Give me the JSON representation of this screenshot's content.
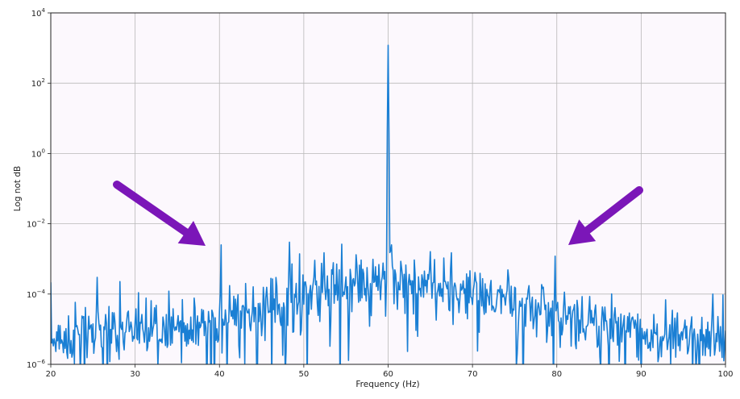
{
  "chart_data": {
    "type": "line",
    "title": "",
    "xlabel": "Frequency (Hz)",
    "ylabel": "Log not dB",
    "xlim": [
      20,
      100
    ],
    "y_scale": "log",
    "ylim": [
      1e-06,
      10000
    ],
    "x_ticks": [
      "20",
      "30",
      "40",
      "50",
      "60",
      "70",
      "80",
      "90",
      "100"
    ],
    "y_ticks": [
      {
        "base": "10",
        "exp": "−6"
      },
      {
        "base": "10",
        "exp": "−4"
      },
      {
        "base": "10",
        "exp": "−2"
      },
      {
        "base": "10",
        "exp": "0"
      },
      {
        "base": "10",
        "exp": "2"
      },
      {
        "base": "10",
        "exp": "4"
      }
    ],
    "grid": true,
    "legend": "none",
    "line_color": "#1a7fd4",
    "annotation_color": "#7b16b8",
    "annotations": [
      {
        "kind": "arrow",
        "points_to": "peak near 40 Hz"
      },
      {
        "kind": "arrow",
        "points_to": "peak near 80 Hz"
      }
    ],
    "series": [
      {
        "peaks": [
          {
            "x": 25.5,
            "y": 0.0003
          },
          {
            "x": 40.2,
            "y": 0.0025
          },
          {
            "x": 48.3,
            "y": 0.003
          },
          {
            "x": 52.4,
            "y": 0.0015
          },
          {
            "x": 60.0,
            "y": 1200
          },
          {
            "x": 60.4,
            "y": 0.0025
          },
          {
            "x": 67.5,
            "y": 0.0015
          },
          {
            "x": 79.8,
            "y": 0.0012
          },
          {
            "x": 98.5,
            "y": 0.0001
          }
        ],
        "noise_floor": [
          [
            20,
            5e-06
          ],
          [
            25,
            8e-06
          ],
          [
            30,
            1e-05
          ],
          [
            35,
            1.2e-05
          ],
          [
            40,
            1.5e-05
          ],
          [
            45,
            4e-05
          ],
          [
            50,
            0.0001
          ],
          [
            55,
            0.00018
          ],
          [
            58,
            0.00025
          ],
          [
            62,
            0.00025
          ],
          [
            65,
            0.00018
          ],
          [
            70,
            0.0001
          ],
          [
            75,
            5e-05
          ],
          [
            80,
            2.5e-05
          ],
          [
            85,
            1.5e-05
          ],
          [
            90,
            1e-05
          ],
          [
            95,
            6e-06
          ],
          [
            100,
            4e-06
          ]
        ]
      }
    ]
  }
}
